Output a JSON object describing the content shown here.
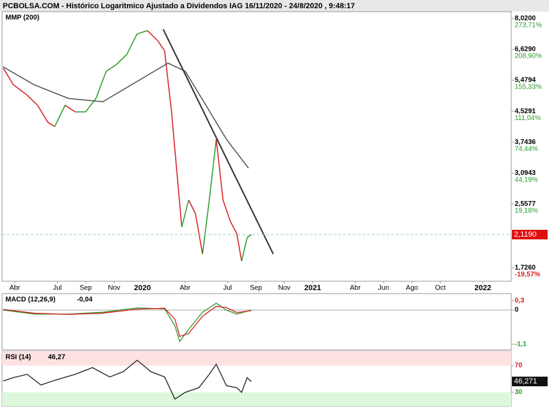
{
  "title": "PCBOLSA.COM - Histórico Logaritmico Ajustado a Dividendos IAG 16/11/2020 - 24/8/2020 , 9:48:17",
  "chart_data": [
    {
      "type": "line",
      "log_scale": true,
      "xlim": [
        2.1,
        38
      ],
      "xticks": [
        {
          "value": 3,
          "label": "Abr"
        },
        {
          "value": 6,
          "label": "Jul"
        },
        {
          "value": 8,
          "label": "Sep"
        },
        {
          "value": 10,
          "label": "Nov"
        },
        {
          "value": 12,
          "label": "2020"
        },
        {
          "value": 15,
          "label": "Abr"
        },
        {
          "value": 18,
          "label": "Jul"
        },
        {
          "value": 20,
          "label": "Sep"
        },
        {
          "value": 22,
          "label": "Nov"
        },
        {
          "value": 24,
          "label": "2021"
        },
        {
          "value": 27,
          "label": "Abr"
        },
        {
          "value": 29,
          "label": "Jun"
        },
        {
          "value": 31,
          "label": "Ago"
        },
        {
          "value": 33,
          "label": "Oct"
        },
        {
          "value": 36,
          "label": "2022"
        }
      ],
      "ylim": [
        1.59,
        8.36
      ],
      "yticks": [
        {
          "value": 8.02,
          "label": "8,0200"
        },
        {
          "value": 6.629,
          "label": "6,6290"
        },
        {
          "value": 5.4794,
          "label": "5,4794"
        },
        {
          "value": 4.5291,
          "label": "4,5291"
        },
        {
          "value": 3.7436,
          "label": "3,7436"
        },
        {
          "value": 3.0943,
          "label": "3,0943"
        },
        {
          "value": 2.5577,
          "label": "2,5577"
        },
        {
          "value": 1.726,
          "label": "1,7260"
        }
      ],
      "pct_labels": [
        {
          "value": 273.71,
          "label": "273,71%"
        },
        {
          "value": 208.9,
          "label": "208,90%"
        },
        {
          "value": 155.33,
          "label": "155,33%"
        },
        {
          "value": 111.04,
          "label": "111,04%"
        },
        {
          "value": 74.44,
          "label": "74,44%"
        },
        {
          "value": 44.19,
          "label": "44,19%"
        },
        {
          "value": 19.18,
          "label": "19,18%"
        },
        {
          "value": -19.57,
          "label": "-19,57%"
        }
      ],
      "last": {
        "value": 2.119,
        "label": "2,1190"
      },
      "price": {
        "up_color": "#2a9d2a",
        "down_color": "#d62020",
        "x": [
          2.18,
          2.9,
          3.87,
          4.6,
          5.33,
          5.81,
          6.54,
          7.26,
          7.99,
          8.72,
          9.44,
          10.17,
          10.9,
          11.62,
          12.35,
          13.08,
          13.56,
          14.05,
          14.43,
          14.77,
          15.26,
          15.74,
          16.23,
          16.71,
          17.2,
          17.68,
          18.17,
          18.65,
          18.99,
          19.38,
          19.67
        ],
        "values": [
          5.91,
          5.33,
          5.0,
          4.7,
          4.23,
          4.12,
          4.7,
          4.51,
          4.51,
          4.9,
          5.79,
          6.04,
          6.43,
          7.29,
          7.44,
          6.99,
          6.57,
          4.51,
          3.1,
          2.22,
          2.62,
          2.41,
          1.88,
          2.62,
          3.81,
          2.62,
          2.31,
          2.13,
          1.8,
          2.08,
          2.12
        ]
      },
      "series": [
        {
          "name": "MMP (200)",
          "color": "#555555",
          "x": [
            2.18,
            4.36,
            6.78,
            9.2,
            11.62,
            13.8,
            15.02,
            16.47,
            17.92,
            19.47
          ],
          "values": [
            5.95,
            5.33,
            4.9,
            4.8,
            5.44,
            6.09,
            5.79,
            4.7,
            3.81,
            3.19
          ]
        }
      ],
      "trendline": {
        "color": "#333333",
        "x": [
          13.46,
          21.22
        ],
        "values": [
          7.5,
          1.88
        ]
      }
    },
    {
      "type": "line",
      "label": "MACD (12,26,9)",
      "last": {
        "value": -0.04,
        "label": "-0,04"
      },
      "xlim": [
        2.1,
        38
      ],
      "ylim": [
        -1.28,
        0.53
      ],
      "yticks": [
        {
          "value": 0.3,
          "label": "0,3"
        },
        0,
        {
          "value": -1.1,
          "label": "-1,1"
        }
      ],
      "series": [
        {
          "color": "#2a9d2a",
          "x": [
            2.18,
            4.36,
            6.78,
            9.2,
            11.62,
            13.56,
            14.29,
            14.63,
            15.26,
            16.23,
            17.2,
            17.92,
            18.65,
            19.67
          ],
          "values": [
            0,
            -0.13,
            -0.13,
            -0.07,
            0.07,
            0.04,
            -0.51,
            -1.01,
            -0.62,
            -0.07,
            0.22,
            0,
            -0.13,
            0
          ]
        },
        {
          "color": "#d62020",
          "x": [
            2.18,
            4.36,
            6.78,
            9.2,
            11.62,
            13.56,
            14.29,
            14.63,
            15.26,
            16.23,
            17.2,
            17.92,
            18.65,
            19.67
          ],
          "values": [
            0.02,
            -0.1,
            -0.14,
            -0.1,
            0.03,
            0.06,
            -0.3,
            -0.85,
            -0.75,
            -0.2,
            0.12,
            0.08,
            -0.08,
            -0.02
          ]
        }
      ]
    },
    {
      "type": "line",
      "label": "RSI (14)",
      "last": {
        "value": 46.27,
        "label": "46,27"
      },
      "last_box": {
        "value": 46.271,
        "label": "46,271"
      },
      "shade_colors": [
        "#fde2e2",
        "#ddf7dd"
      ],
      "xlim": [
        2.1,
        38
      ],
      "ylim": [
        9.5,
        91.5
      ],
      "yticks": [
        70,
        30
      ],
      "series": [
        {
          "color": "#222222",
          "x": [
            2.18,
            2.9,
            3.87,
            4.84,
            5.81,
            7.26,
            8.47,
            9.69,
            10.65,
            11.62,
            12.59,
            13.56,
            14.29,
            15.02,
            15.98,
            16.71,
            17.2,
            17.92,
            18.65,
            18.99,
            19.38,
            19.67
          ],
          "values": [
            47,
            52,
            57,
            41,
            48,
            57,
            67,
            53,
            61,
            78,
            61,
            53,
            20,
            30,
            37,
            57,
            72,
            40,
            37,
            30,
            52,
            46
          ]
        }
      ]
    }
  ]
}
